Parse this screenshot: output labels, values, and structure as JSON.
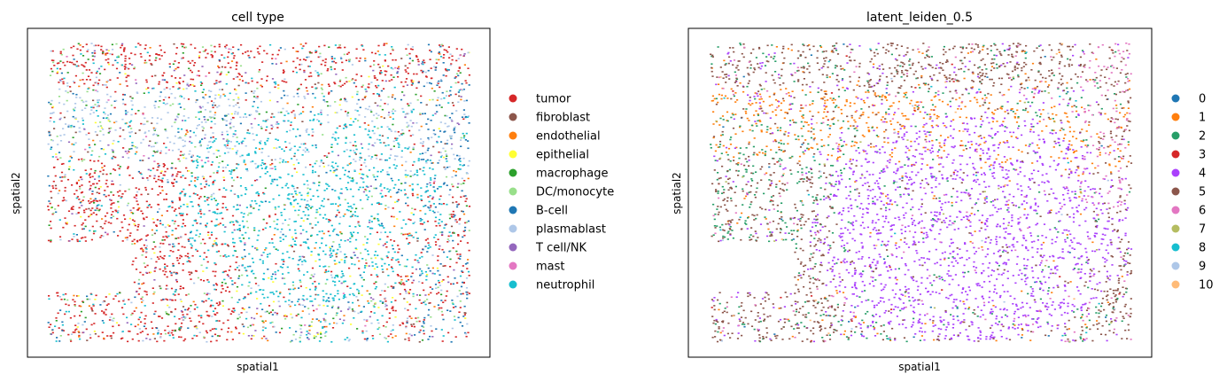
{
  "figure": {
    "panels": [
      {
        "title": "cell type",
        "xlabel": "spatial1",
        "ylabel": "spatial2"
      },
      {
        "title": "latent_leiden_0.5",
        "xlabel": "spatial1",
        "ylabel": "spatial2"
      }
    ]
  },
  "chart_data": [
    {
      "type": "scatter",
      "title": "cell type",
      "xlabel": "spatial1",
      "ylabel": "spatial2",
      "ticks": "none",
      "grid": false,
      "legend_placement": "right",
      "colors_by_category": {
        "tumor": "#d62728",
        "fibroblast": "#8c564b",
        "endothelial": "#ff7f0e",
        "epithelial": "#ffff33",
        "macrophage": "#2ca02c",
        "DC/monocyte": "#98df8a",
        "B-cell": "#1f77b4",
        "plasmablast": "#aec7e8",
        "T cell/NK": "#9467bd",
        "mast": "#e377c2",
        "neutrophil": "#17becf"
      },
      "legend": [
        "tumor",
        "fibroblast",
        "endothelial",
        "epithelial",
        "macrophage",
        "DC/monocyte",
        "B-cell",
        "plasmablast",
        "T cell/NK",
        "mast",
        "neutrophil"
      ],
      "series": [
        {
          "name": "tumor",
          "color": "#d62728",
          "relative_density": 0.24
        },
        {
          "name": "fibroblast",
          "color": "#8c564b",
          "relative_density": 0.03
        },
        {
          "name": "endothelial",
          "color": "#ff7f0e",
          "relative_density": 0.05
        },
        {
          "name": "epithelial",
          "color": "#ffff33",
          "relative_density": 0.04
        },
        {
          "name": "macrophage",
          "color": "#2ca02c",
          "relative_density": 0.05
        },
        {
          "name": "DC/monocyte",
          "color": "#98df8a",
          "relative_density": 0.06
        },
        {
          "name": "B-cell",
          "color": "#1f77b4",
          "relative_density": 0.09
        },
        {
          "name": "plasmablast",
          "color": "#aec7e8",
          "relative_density": 0.12
        },
        {
          "name": "T cell/NK",
          "color": "#9467bd",
          "relative_density": 0.05
        },
        {
          "name": "mast",
          "color": "#e377c2",
          "relative_density": 0.01
        },
        {
          "name": "neutrophil",
          "color": "#17becf",
          "relative_density": 0.26
        }
      ]
    },
    {
      "type": "scatter",
      "title": "latent_leiden_0.5",
      "xlabel": "spatial1",
      "ylabel": "spatial2",
      "ticks": "none",
      "grid": false,
      "legend_placement": "right",
      "colors_by_category": {
        "0": "#1f77b4",
        "1": "#ff7f0e",
        "2": "#279e68",
        "3": "#d62728",
        "4": "#aa40fc",
        "5": "#8c564b",
        "6": "#e377c2",
        "7": "#b5bd61",
        "8": "#17becf",
        "9": "#aec7e8",
        "10": "#ffbb78"
      },
      "legend": [
        "0",
        "1",
        "2",
        "3",
        "4",
        "5",
        "6",
        "7",
        "8",
        "9",
        "10"
      ],
      "series": [
        {
          "name": "0",
          "color": "#1f77b4",
          "relative_density": 0.01
        },
        {
          "name": "1",
          "color": "#ff7f0e",
          "relative_density": 0.14
        },
        {
          "name": "2",
          "color": "#279e68",
          "relative_density": 0.16
        },
        {
          "name": "3",
          "color": "#d62728",
          "relative_density": 0.01
        },
        {
          "name": "4",
          "color": "#aa40fc",
          "relative_density": 0.34
        },
        {
          "name": "5",
          "color": "#8c564b",
          "relative_density": 0.22
        },
        {
          "name": "6",
          "color": "#e377c2",
          "relative_density": 0.1
        },
        {
          "name": "7",
          "color": "#b5bd61",
          "relative_density": 0.005
        },
        {
          "name": "8",
          "color": "#17becf",
          "relative_density": 0.005
        },
        {
          "name": "9",
          "color": "#aec7e8",
          "relative_density": 0.005
        },
        {
          "name": "10",
          "color": "#ffbb78",
          "relative_density": 0.005
        }
      ]
    }
  ]
}
